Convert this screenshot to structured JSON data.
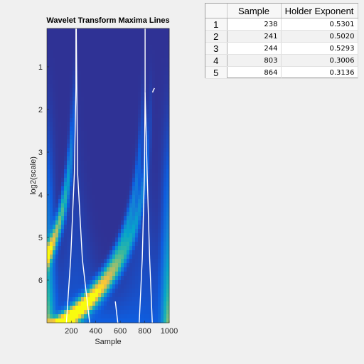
{
  "chart_data": {
    "type": "heatmap",
    "title": "Wavelet Transform Maxima Lines",
    "xlabel": "Sample",
    "ylabel": "log2(scale)",
    "xlim": [
      1,
      1000
    ],
    "ylim": [
      0.1,
      7
    ],
    "y_reversed": true,
    "xticks": [
      200,
      400,
      600,
      800,
      1000
    ],
    "yticks": [
      1,
      2,
      3,
      4,
      5,
      6
    ],
    "colormap": "parula",
    "colors": [
      "#352a87",
      "#0f5cdd",
      "#1481d6",
      "#06a4ca",
      "#2eb7a4",
      "#87bf77",
      "#d1bb59",
      "#fec832",
      "#f9fb0e"
    ],
    "intensity_peaks": [
      {
        "x": 238,
        "spread": 0.07,
        "lines": [
          {
            "x": 238,
            "slope": 22
          },
          {
            "x": 241,
            "slope": -22
          }
        ]
      },
      {
        "x": 803,
        "spread": 0.07,
        "lines": [
          {
            "x": 803,
            "slope": 22
          },
          {
            "x": 864,
            "slope": -22
          }
        ]
      }
    ],
    "maxima_lines": [
      {
        "points": [
          [
            238,
            0.1
          ],
          [
            238,
            1.5
          ],
          [
            225,
            3.5
          ],
          [
            195,
            5.5
          ],
          [
            160,
            7
          ]
        ]
      },
      {
        "points": [
          [
            241,
            0.1
          ],
          [
            245,
            1.5
          ],
          [
            252,
            3.5
          ],
          [
            290,
            5.5
          ],
          [
            350,
            7
          ]
        ]
      },
      {
        "points": [
          [
            803,
            0.1
          ],
          [
            803,
            1.5
          ],
          [
            798,
            3.5
          ],
          [
            780,
            5.5
          ],
          [
            755,
            7
          ]
        ]
      },
      {
        "points": [
          [
            803,
            1.6
          ],
          [
            820,
            3.5
          ],
          [
            840,
            5.5
          ],
          [
            862,
            7
          ]
        ]
      },
      {
        "points": [
          [
            864,
            1.6
          ],
          [
            870,
            1.55
          ],
          [
            880,
            1.5
          ]
        ]
      },
      {
        "points": [
          [
            560,
            6.5
          ],
          [
            580,
            7
          ]
        ]
      }
    ]
  },
  "table": {
    "columns": [
      "Sample",
      "Holder Exponent"
    ],
    "rows": [
      {
        "index": "1",
        "sample": "238",
        "holder": "0.5301"
      },
      {
        "index": "2",
        "sample": "241",
        "holder": "0.5020"
      },
      {
        "index": "3",
        "sample": "244",
        "holder": "0.5293"
      },
      {
        "index": "4",
        "sample": "803",
        "holder": "0.3006"
      },
      {
        "index": "5",
        "sample": "864",
        "holder": "0.3136"
      }
    ]
  }
}
